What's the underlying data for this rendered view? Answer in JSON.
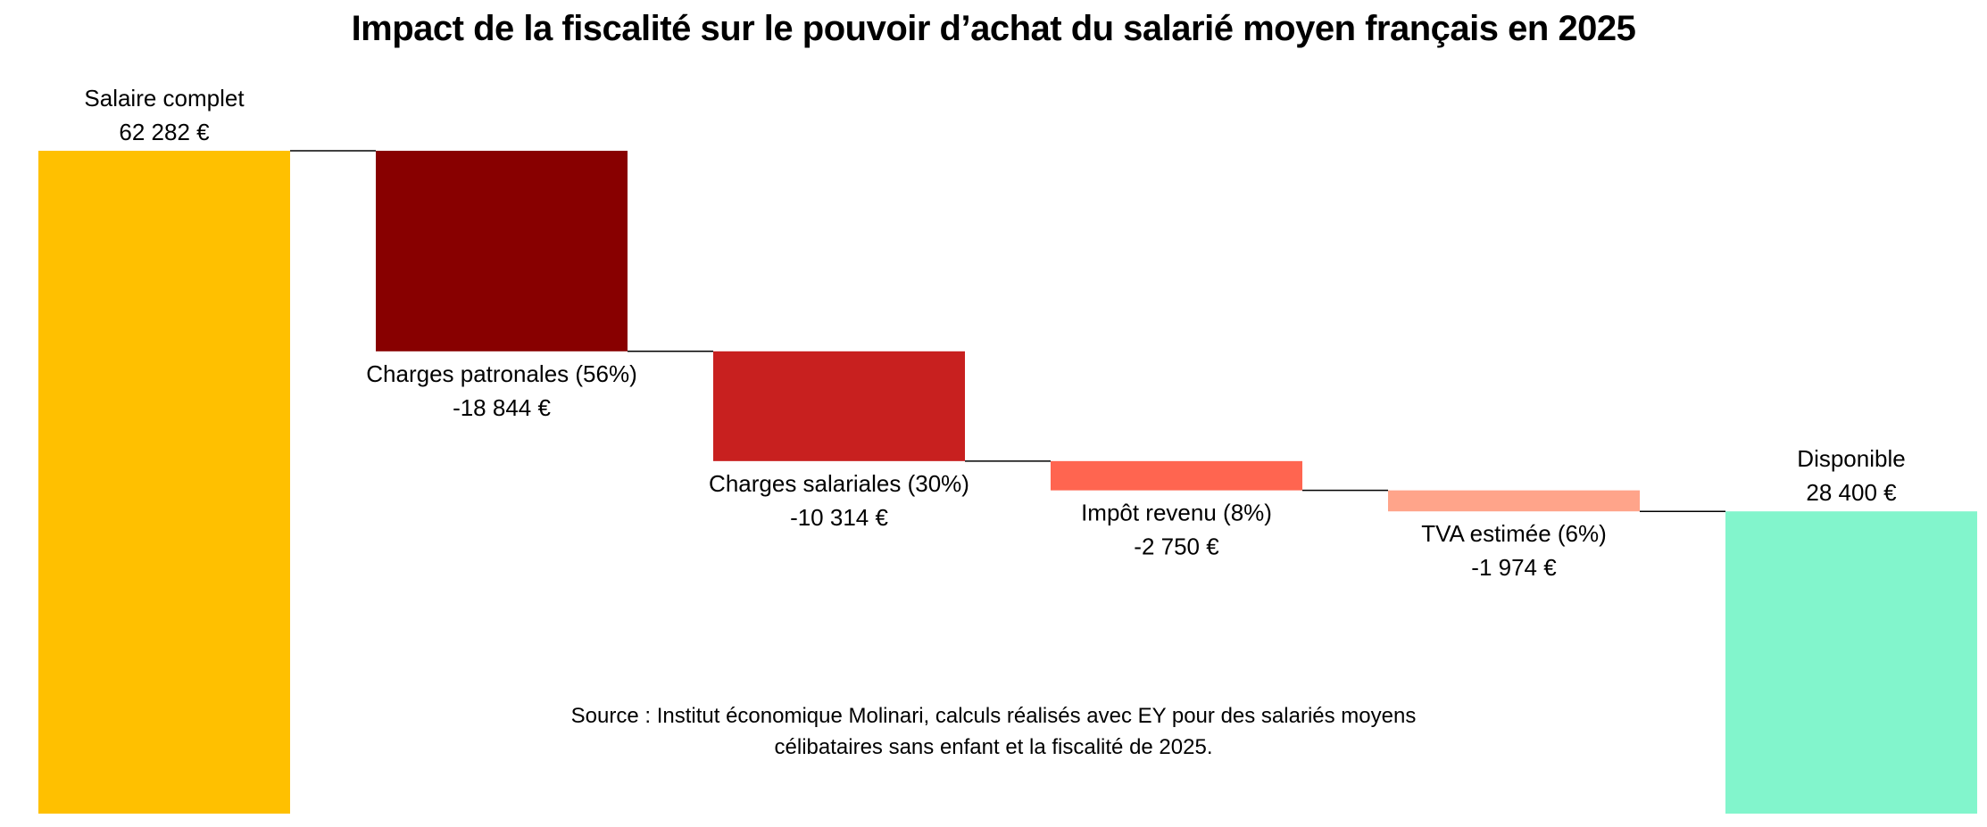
{
  "chart_data": {
    "type": "waterfall",
    "title": "Impact de la fiscalité sur le pouvoir d’achat du salarié moyen français en 2025",
    "ylim": [
      0,
      62282
    ],
    "grid": false,
    "legend": "none",
    "steps": [
      {
        "label": "Salaire complet",
        "value_label": "62 282 €",
        "value": 62282,
        "kind": "total",
        "color": "#ffc000"
      },
      {
        "label": "Charges patronales (56%)",
        "value_label": "-18 844 €",
        "value": -18844,
        "kind": "delta",
        "color": "#880000"
      },
      {
        "label": "Charges salariales (30%)",
        "value_label": "-10 314 €",
        "value": -10314,
        "kind": "delta",
        "color": "#c8201f"
      },
      {
        "label": "Impôt revenu (8%)",
        "value_label": "-2 750 €",
        "value": -2750,
        "kind": "delta",
        "color": "#ff6550"
      },
      {
        "label": "TVA estimée (6%)",
        "value_label": "-1 974 €",
        "value": -1974,
        "kind": "delta",
        "color": "#ffa48a"
      },
      {
        "label": "Disponible",
        "value_label": "28 400 €",
        "value": 28400,
        "kind": "total",
        "color": "#82f5cc"
      }
    ]
  },
  "source": {
    "line1": "Source : Institut économique Molinari, calculs réalisés avec EY pour des salariés moyens",
    "line2": "célibataires sans enfant et la fiscalité de 2025."
  }
}
